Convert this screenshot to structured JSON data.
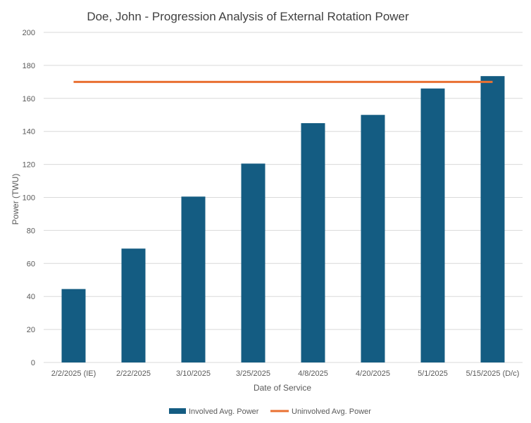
{
  "chart_data": {
    "type": "bar",
    "title": "Doe, John - Progression Analysis of External Rotation Power",
    "xlabel": "Date of Service",
    "ylabel": "Power (TWU)",
    "ylim": [
      0,
      200
    ],
    "yticks": [
      0,
      20,
      40,
      60,
      80,
      100,
      120,
      140,
      160,
      180,
      200
    ],
    "grid": true,
    "legend_position": "bottom",
    "categories": [
      "2/2/2025 (IE)",
      "2/22/2025",
      "3/10/2025",
      "3/25/2025",
      "4/8/2025",
      "4/20/2025",
      "5/1/2025",
      "5/15/2025 (D/c)"
    ],
    "series": [
      {
        "name": "Involved Avg. Power",
        "type": "bar",
        "color": "#145c82",
        "values": [
          44.5,
          69,
          100.5,
          120.5,
          145,
          150,
          166,
          173.5
        ]
      },
      {
        "name": "Uninvolved Avg. Power",
        "type": "line",
        "color": "#e97132",
        "values": [
          170,
          170,
          170,
          170,
          170,
          170,
          170,
          170
        ]
      }
    ]
  }
}
